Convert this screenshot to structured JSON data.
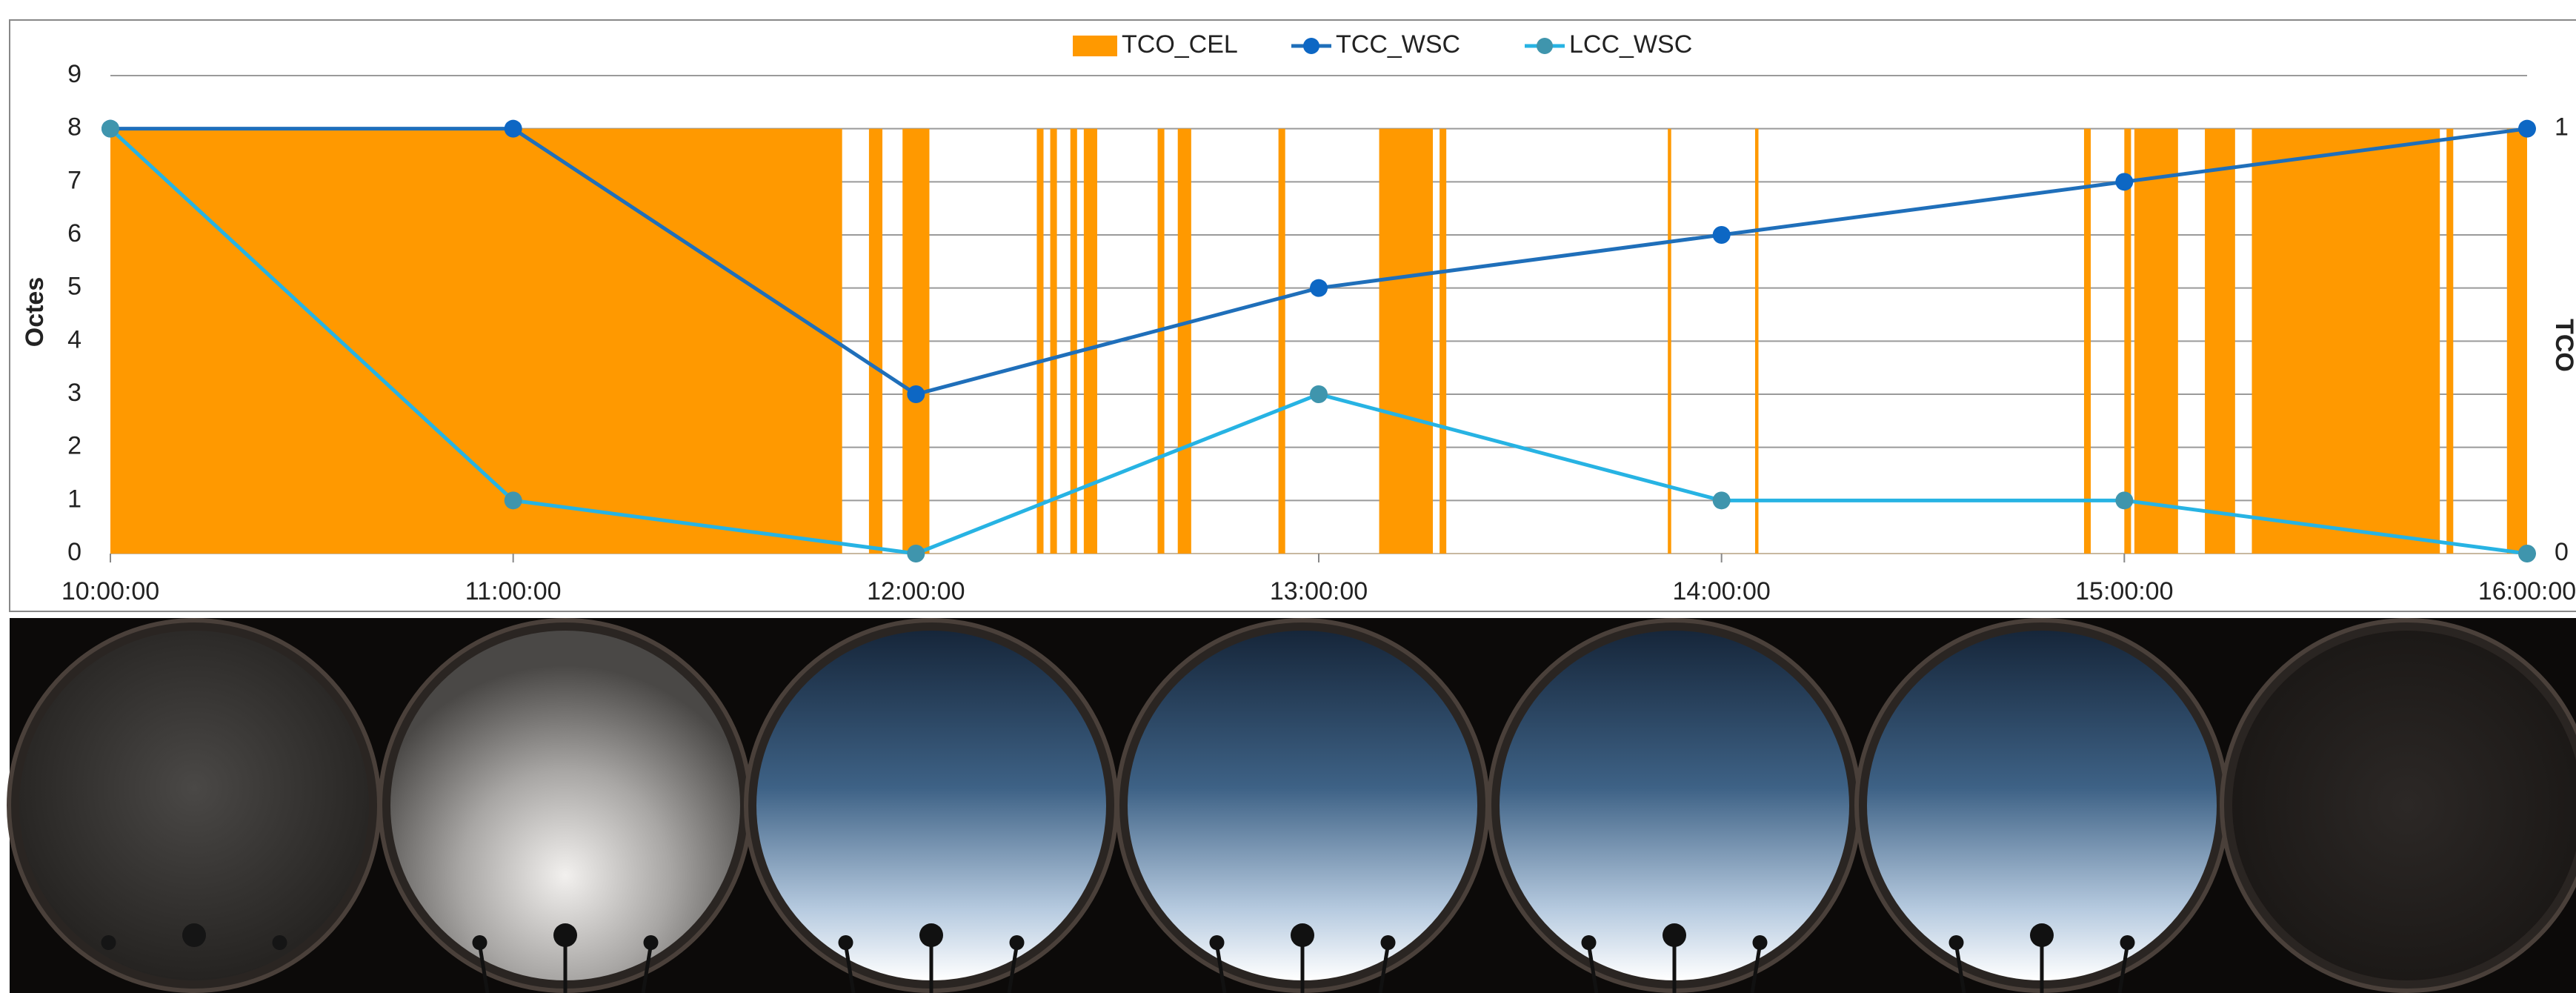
{
  "chart_data": {
    "type": "combo",
    "y_label": "Octes",
    "y2_label": "TCO",
    "xlim": [
      "10:00:00",
      "16:00:00"
    ],
    "xticks": [
      "10:00:00",
      "11:00:00",
      "12:00:00",
      "13:00:00",
      "14:00:00",
      "15:00:00",
      "16:00:00"
    ],
    "ylim": [
      0,
      9
    ],
    "yticks": [
      0,
      1,
      2,
      3,
      4,
      5,
      6,
      7,
      8,
      9
    ],
    "y2lim": [
      0,
      1.125
    ],
    "y2ticks": [
      0,
      1
    ],
    "grid": true,
    "legend": "top",
    "series": [
      {
        "name": "TCO_CEL",
        "type": "bar",
        "axis": "y2",
        "color": "#ff9900",
        "x_start": [
          "10:00:00",
          "11:53:00",
          "11:58:00",
          "12:18:00",
          "12:20:00",
          "12:23:00",
          "12:25:00",
          "12:36:00",
          "12:39:00",
          "12:54:00",
          "13:09:00",
          "13:18:00",
          "13:52:00",
          "14:05:00",
          "14:54:00",
          "15:00:00",
          "15:01:30",
          "15:12:00",
          "15:19:00",
          "15:48:00",
          "15:57:00"
        ],
        "x_end": [
          "11:49:00",
          "11:55:00",
          "12:02:00",
          "12:19:00",
          "12:21:00",
          "12:24:00",
          "12:27:00",
          "12:37:00",
          "12:41:00",
          "12:55:00",
          "13:17:00",
          "13:19:00",
          "13:52:30",
          "14:05:30",
          "14:55:00",
          "15:01:00",
          "15:08:00",
          "15:16:30",
          "15:47:00",
          "15:49:00",
          "16:00:00"
        ],
        "values": [
          1,
          1,
          1,
          1,
          1,
          1,
          1,
          1,
          1,
          1,
          1,
          1,
          1,
          1,
          1,
          1,
          1,
          1,
          1,
          1,
          1
        ]
      },
      {
        "name": "TCC_WSC",
        "type": "line",
        "color": "#1f6fba",
        "marker_color": "#0d67c4",
        "x": [
          "10:00:00",
          "11:00:00",
          "12:00:00",
          "13:00:00",
          "14:00:00",
          "15:00:00",
          "16:00:00"
        ],
        "values": [
          8,
          8,
          3,
          5,
          6,
          7,
          8
        ]
      },
      {
        "name": "LCC_WSC",
        "type": "line",
        "color": "#27b3e3",
        "marker_color": "#3f95ad",
        "x": [
          "10:00:00",
          "11:00:00",
          "12:00:00",
          "13:00:00",
          "14:00:00",
          "15:00:00",
          "16:00:00"
        ],
        "values": [
          8,
          1,
          0,
          3,
          1,
          1,
          0
        ]
      }
    ]
  }
}
